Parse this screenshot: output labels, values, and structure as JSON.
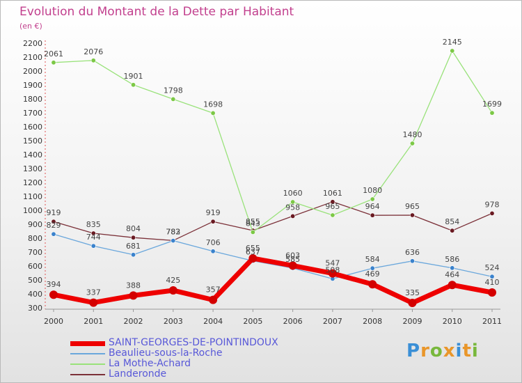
{
  "header": {
    "title": "Evolution du Montant de la Dette par Habitant",
    "subtitle": "(en €)"
  },
  "logo": {
    "letters": [
      "P",
      "r",
      "o",
      "x",
      "i",
      "t",
      "i"
    ],
    "colors": [
      "#3a8fd6",
      "#e9962a",
      "#78b83c",
      "#e9962a",
      "#3a8fd6",
      "#e9962a",
      "#78b83c"
    ]
  },
  "chart_data": {
    "type": "line",
    "title": "Evolution du Montant de la Dette par Habitant",
    "ylabel": "(en €)",
    "ylim": [
      300,
      2200
    ],
    "ystep": 100,
    "grid": false,
    "legend_position": "bottom-left",
    "categories": [
      "2000",
      "2001",
      "2002",
      "2003",
      "2004",
      "2005",
      "2006",
      "2007",
      "2008",
      "2009",
      "2010",
      "2011"
    ],
    "series": [
      {
        "name": "SAINT-GEORGES-DE-POINTINDOUX",
        "color": "#ee0000",
        "marker": "#d40000",
        "values": [
          394,
          337,
          388,
          425,
          357,
          655,
          603,
          547,
          469,
          335,
          464,
          410
        ]
      },
      {
        "name": "Beaulieu-sous-la-Roche",
        "color": "#6aa7dc",
        "marker": "#3a82cc",
        "values": [
          829,
          744,
          681,
          782,
          706,
          637,
          585,
          508,
          584,
          636,
          586,
          524
        ]
      },
      {
        "name": "La Mothe-Achard",
        "color": "#99e27a",
        "marker": "#7cc846",
        "values": [
          2061,
          2076,
          1901,
          1798,
          1698,
          843,
          1060,
          965,
          1080,
          1480,
          2145,
          1699
        ]
      },
      {
        "name": "Landeronde",
        "color": "#7b3038",
        "marker": "#6a1a22",
        "values": [
          919,
          835,
          804,
          783,
          919,
          855,
          958,
          1061,
          964,
          965,
          854,
          978
        ]
      }
    ]
  }
}
